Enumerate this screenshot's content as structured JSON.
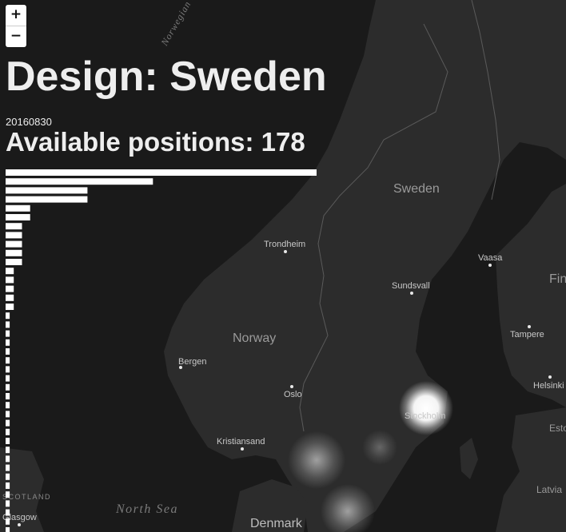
{
  "map": {
    "countries": [
      {
        "name": "Sweden"
      },
      {
        "name": "Norway"
      },
      {
        "name": "Denmark"
      },
      {
        "name": "Latvia"
      },
      {
        "name": "Esto"
      },
      {
        "name": "Fin"
      }
    ],
    "cities": [
      {
        "name": "Trondheim"
      },
      {
        "name": "Sundsvall"
      },
      {
        "name": "Vaasa"
      },
      {
        "name": "Bergen"
      },
      {
        "name": "Oslo"
      },
      {
        "name": "Tampere"
      },
      {
        "name": "Helsinki"
      },
      {
        "name": "Kristiansand"
      },
      {
        "name": "Stockholm"
      },
      {
        "name": "Glasgow"
      }
    ],
    "seas": [
      {
        "name": "North Sea"
      },
      {
        "name": "Norwegian Sea"
      }
    ],
    "regions": [
      {
        "name": "SCOTLAND"
      }
    ],
    "colors": {
      "land": "#2c2c2c",
      "water": "#1a1a1a",
      "border": "#5a5a5a",
      "label": "#bdbdbd",
      "heat": "#ffffff"
    }
  },
  "zoom": {
    "in_label": "+",
    "out_label": "−"
  },
  "header": {
    "title": "Design: Sweden",
    "date": "20160830",
    "available_label": "Available positions: 178"
  },
  "chart_data": {
    "type": "bar",
    "orientation": "horizontal",
    "values": [
      76,
      36,
      20,
      20,
      6,
      6,
      4,
      4,
      4,
      4,
      4,
      2,
      2,
      2,
      2,
      2,
      1,
      1,
      1,
      1,
      1,
      1,
      1,
      1,
      1,
      1,
      1,
      1,
      1,
      1,
      1,
      1,
      1,
      1,
      1,
      1,
      1,
      1,
      1,
      1,
      1
    ]
  }
}
